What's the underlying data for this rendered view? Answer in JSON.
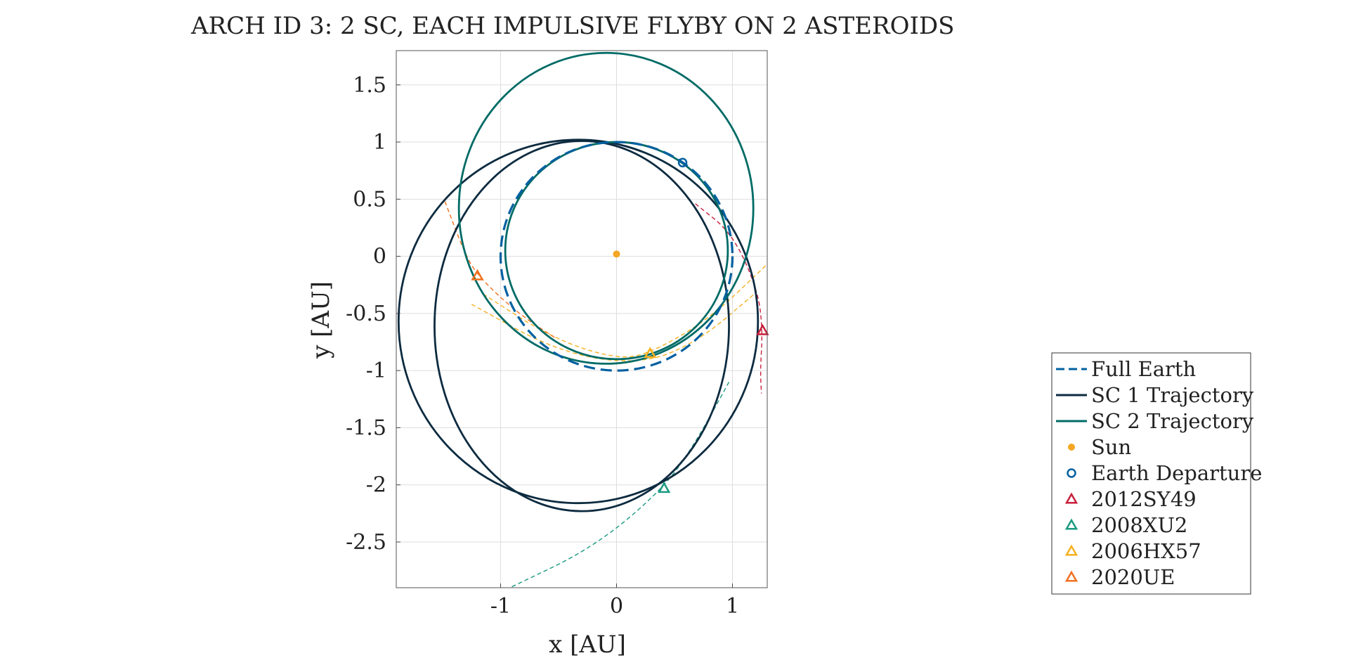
{
  "chart_data": {
    "type": "line",
    "title": "ARCH ID 3: 2 SC, EACH IMPULSIVE FLYBY ON 2 ASTEROIDS",
    "xlabel": "x [AU]",
    "ylabel": "y [AU]",
    "xlim": [
      -1.9,
      1.3
    ],
    "ylim": [
      -2.9,
      1.8
    ],
    "xticks": [
      -1,
      0,
      1
    ],
    "xtick_labels": [
      "-1",
      "0",
      "1"
    ],
    "yticks": [
      1.5,
      1,
      0.5,
      0,
      -0.5,
      -1,
      -1.5,
      -2,
      -2.5
    ],
    "ytick_labels": [
      "1.5",
      "1",
      "0.5",
      "0",
      "-0.5",
      "-1",
      "-1.5",
      "-2",
      "-2.5"
    ],
    "grid": true,
    "aspect": "equal",
    "legend_position": "right",
    "colors": {
      "earth": "#0060a0",
      "sc1": "#0d2b40",
      "sc2": "#006b66",
      "sun": "#f5a623",
      "ast_2012SY49": "#c8203c",
      "ast_2008XU2": "#1a9a80",
      "ast_2006HX57": "#f5b020",
      "ast_2020UE": "#f07020"
    },
    "series": [
      {
        "name": "Full Earth",
        "kind": "ellipse",
        "style": "dashed",
        "cx": 0.0,
        "cy": 0.0,
        "a": 1.0,
        "b": 1.0
      },
      {
        "name": "SC 1 Trajectory",
        "kind": "closed-curves",
        "style": "solid",
        "curves": [
          {
            "cx": -0.33,
            "cy": -0.57,
            "a": 1.55,
            "b": 1.59
          },
          {
            "cx": -0.3,
            "cy": -0.61,
            "a": 1.27,
            "b": 1.62
          }
        ]
      },
      {
        "name": "SC 2 Trajectory",
        "kind": "closed-curves",
        "style": "solid",
        "curves": [
          {
            "cx": -0.09,
            "cy": 0.42,
            "a": 1.27,
            "b": 1.36
          },
          {
            "cx": 0.0,
            "cy": 0.05,
            "a": 0.96,
            "b": 0.95
          }
        ]
      },
      {
        "name": "Sun",
        "kind": "point",
        "marker": "dot",
        "x": 0.0,
        "y": 0.02
      },
      {
        "name": "Earth Departure",
        "kind": "point",
        "marker": "circle",
        "x": 0.57,
        "y": 0.82
      },
      {
        "name": "2012SY49",
        "kind": "arc",
        "marker": "triangle",
        "x": 1.26,
        "y": -0.65,
        "arc": [
          [
            0.68,
            0.46
          ],
          [
            1.0,
            0.2
          ],
          [
            1.22,
            -0.3
          ],
          [
            1.26,
            -0.65
          ],
          [
            1.24,
            -1.0
          ],
          [
            1.25,
            -1.2
          ]
        ]
      },
      {
        "name": "2008XU2",
        "kind": "arc",
        "marker": "triangle",
        "x": 0.41,
        "y": -2.03,
        "arc": [
          [
            0.97,
            -1.1
          ],
          [
            0.7,
            -1.6
          ],
          [
            0.41,
            -2.03
          ],
          [
            -0.2,
            -2.55
          ],
          [
            -0.92,
            -2.9
          ]
        ]
      },
      {
        "name": "2006HX57",
        "kind": "arc",
        "marker": "triangle",
        "x": 0.29,
        "y": -0.85,
        "arc": [
          [
            -1.15,
            -0.33
          ],
          [
            -0.55,
            -0.72
          ],
          [
            0.0,
            -0.9
          ],
          [
            0.29,
            -0.85
          ],
          [
            0.8,
            -0.55
          ],
          [
            1.3,
            -0.07
          ]
        ],
        "arc2": [
          [
            -1.25,
            -0.42
          ],
          [
            -0.5,
            -0.84
          ],
          [
            0.2,
            -0.95
          ],
          [
            0.7,
            -0.75
          ],
          [
            1.2,
            -0.32
          ]
        ]
      },
      {
        "name": "2020UE",
        "kind": "arc",
        "marker": "triangle",
        "x": -1.2,
        "y": -0.17,
        "arc": [
          [
            -1.48,
            0.48
          ],
          [
            -1.32,
            0.05
          ],
          [
            -1.2,
            -0.17
          ],
          [
            -0.85,
            -0.5
          ],
          [
            -0.52,
            -0.72
          ]
        ]
      }
    ]
  }
}
